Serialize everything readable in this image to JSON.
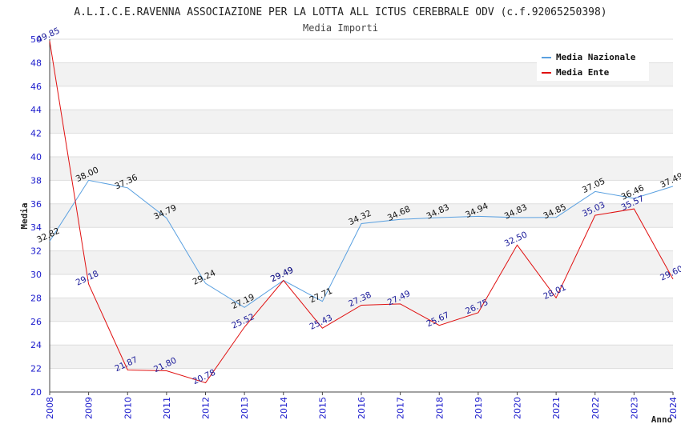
{
  "chart_data": {
    "type": "line",
    "title": "A.L.I.C.E.RAVENNA ASSOCIAZIONE PER LA LOTTA ALL ICTUS CEREBRALE ODV (c.f.92065250398)",
    "subtitle": "Media Importi",
    "xlabel": "Anno",
    "ylabel": "Media",
    "ylim": [
      20,
      50
    ],
    "yticks": [
      "20",
      "22",
      "24",
      "26",
      "28",
      "30",
      "32",
      "34",
      "36",
      "38",
      "40",
      "42",
      "44",
      "46",
      "48",
      "50"
    ],
    "x": [
      "2008",
      "2009",
      "2010",
      "2011",
      "2012",
      "2013",
      "2014",
      "2015",
      "2016",
      "2017",
      "2018",
      "2019",
      "2020",
      "2021",
      "2022",
      "2023",
      "2024"
    ],
    "legend_position": "top-right",
    "series": [
      {
        "name": "Media Nazionale",
        "color": "#5aa0e0",
        "label_color": "#111111",
        "values": [
          32.82,
          38.0,
          37.36,
          34.79,
          29.24,
          27.19,
          29.49,
          27.71,
          34.32,
          34.68,
          34.83,
          34.94,
          34.83,
          34.85,
          37.05,
          36.46,
          37.49
        ],
        "labels": [
          "32.82",
          "38.00",
          "37.36",
          "34.79",
          "29.24",
          "27.19",
          "29.49",
          "27.71",
          "34.32",
          "34.68",
          "34.83",
          "34.94",
          "34.83",
          "34.85",
          "37.05",
          "36.46",
          "37.49"
        ]
      },
      {
        "name": "Media Ente",
        "color": "#e01010",
        "label_color": "#1a1a99",
        "values": [
          49.85,
          29.18,
          21.87,
          21.8,
          20.78,
          25.52,
          29.49,
          25.43,
          27.38,
          27.49,
          25.67,
          26.75,
          32.5,
          28.01,
          35.03,
          35.57,
          29.6
        ],
        "labels": [
          "49.85",
          "29.18",
          "21.87",
          "21.80",
          "20.78",
          "25.52",
          "29.49",
          "25.43",
          "27.38",
          "27.49",
          "25.67",
          "26.75",
          "32.50",
          "28.01",
          "35.03",
          "35.57",
          "29.60"
        ]
      }
    ]
  }
}
